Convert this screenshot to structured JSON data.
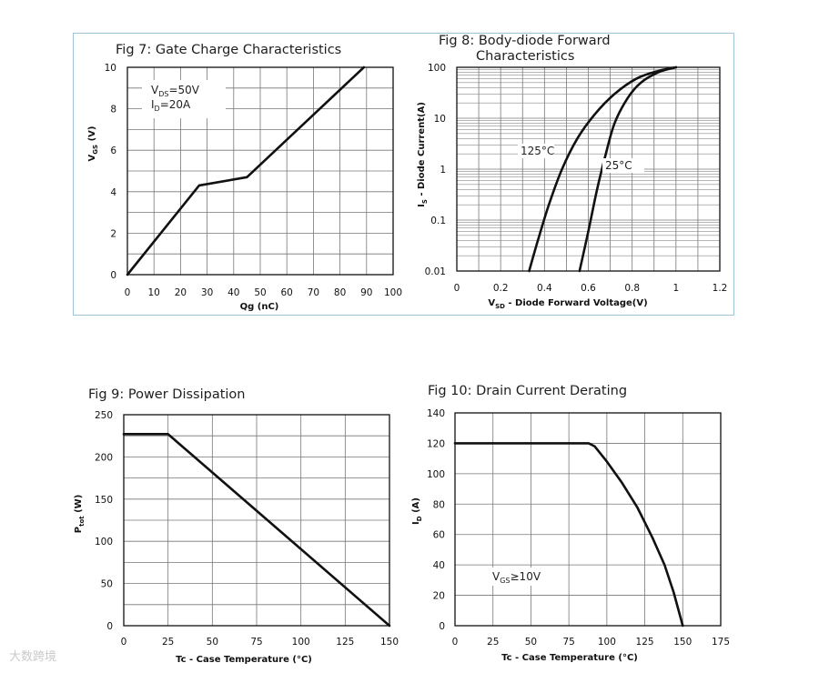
{
  "chart_data": [
    {
      "id": "fig7",
      "type": "line",
      "title": "Fig 7: Gate Charge Characteristics",
      "xlabel": "Qg (nC)",
      "ylabel_main": "V",
      "ylabel_sub": "GS",
      "ylabel_unit": " (V)",
      "xlim": [
        0,
        100
      ],
      "ylim": [
        0,
        10
      ],
      "xticks": [
        0,
        10,
        20,
        30,
        40,
        50,
        60,
        70,
        80,
        90,
        100
      ],
      "yticks": [
        0,
        2,
        4,
        6,
        8,
        10
      ],
      "annotations": [
        {
          "main": "V",
          "sub": "DS",
          "rest": "=50V"
        },
        {
          "main": "I",
          "sub": "D",
          "rest": "=20A"
        }
      ],
      "series": [
        {
          "name": "VGS",
          "x": [
            0,
            27,
            45,
            89
          ],
          "y": [
            0,
            4.3,
            4.7,
            10
          ]
        }
      ]
    },
    {
      "id": "fig8",
      "type": "line",
      "title_lines": [
        "Fig 8: Body-diode Forward",
        "Characteristics"
      ],
      "xlabel_main": "V",
      "xlabel_sub": "SD",
      "xlabel_rest": " - Diode Forward Voltage(V)",
      "ylabel_main": "I",
      "ylabel_sub": "S",
      "ylabel_rest": " - Diode Current(A)",
      "xlim": [
        0,
        1.2
      ],
      "ylim": [
        0.01,
        100
      ],
      "yscale": "log",
      "xticks": [
        0,
        0.2,
        0.4,
        0.6,
        0.8,
        1,
        1.2
      ],
      "xtick_labels": [
        "0",
        "0.2",
        "0.4",
        "0.6",
        "0.8",
        "1",
        "1.2"
      ],
      "yticks": [
        0.01,
        0.1,
        1,
        10,
        100
      ],
      "ytick_labels": [
        "0.01",
        "0.1",
        "1",
        "10",
        "100"
      ],
      "series": [
        {
          "name": "125°C",
          "label": "125°C",
          "x": [
            0.33,
            0.37,
            0.42,
            0.48,
            0.55,
            0.63,
            0.72,
            0.82,
            0.92,
            1.0
          ],
          "y": [
            0.01,
            0.04,
            0.2,
            1,
            4,
            12,
            30,
            60,
            85,
            100
          ]
        },
        {
          "name": "25°C",
          "label": "25°C",
          "x": [
            0.56,
            0.6,
            0.64,
            0.68,
            0.72,
            0.78,
            0.84,
            0.92,
            1.0
          ],
          "y": [
            0.01,
            0.06,
            0.4,
            2,
            8,
            25,
            50,
            80,
            100
          ]
        }
      ]
    },
    {
      "id": "fig9",
      "type": "line",
      "title": "Fig 9: Power Dissipation",
      "xlabel": "Tc - Case Temperature (°C)",
      "ylabel_main": "P",
      "ylabel_sub": "tot",
      "ylabel_unit": " (W)",
      "xlim": [
        0,
        150
      ],
      "ylim": [
        0,
        250
      ],
      "xticks": [
        0,
        25,
        50,
        75,
        100,
        125,
        150
      ],
      "yticks": [
        0,
        50,
        100,
        150,
        200,
        250
      ],
      "series": [
        {
          "name": "Ptot",
          "x": [
            0,
            25,
            150
          ],
          "y": [
            227,
            227,
            0
          ]
        }
      ]
    },
    {
      "id": "fig10",
      "type": "line",
      "title": "Fig 10: Drain Current Derating",
      "xlabel": "Tc - Case Temperature (°C)",
      "ylabel_main": "I",
      "ylabel_sub": "D",
      "ylabel_unit": " (A)",
      "xlim": [
        0,
        175
      ],
      "ylim": [
        0,
        140
      ],
      "xticks": [
        0,
        25,
        50,
        75,
        100,
        125,
        150,
        175
      ],
      "yticks": [
        0,
        20,
        40,
        60,
        80,
        100,
        120,
        140
      ],
      "annotations": [
        {
          "main": "V",
          "sub": "GS",
          "rest": "≥10V"
        }
      ],
      "series": [
        {
          "name": "ID",
          "x": [
            0,
            88,
            92,
            100,
            110,
            120,
            130,
            138,
            144,
            150
          ],
          "y": [
            120,
            120,
            118,
            108,
            94,
            78,
            58,
            40,
            22,
            0
          ]
        }
      ]
    }
  ],
  "watermark": "大数跨境"
}
